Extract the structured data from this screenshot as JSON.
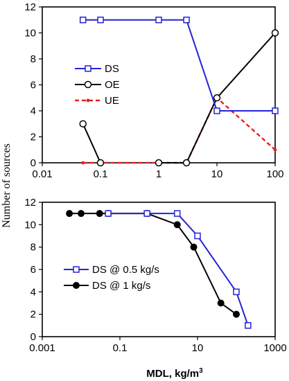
{
  "ylabel": "Number of sources",
  "chart_data": [
    {
      "type": "line",
      "xscale": "log",
      "xlim": [
        0.01,
        100
      ],
      "ylim": [
        0,
        12
      ],
      "xticks": [
        "0.01",
        "0.1",
        "1",
        "10",
        "100"
      ],
      "yticks": [
        "0",
        "2",
        "4",
        "6",
        "8",
        "10",
        "12"
      ],
      "legend_position": "left",
      "series": [
        {
          "name": "DS",
          "color": "#2323d6",
          "marker": "open-square",
          "style": "solid",
          "points": [
            [
              0.05,
              11
            ],
            [
              0.1,
              11
            ],
            [
              1,
              11
            ],
            [
              3,
              11
            ],
            [
              10,
              4
            ],
            [
              100,
              4
            ]
          ]
        },
        {
          "name": "OE",
          "color": "#000000",
          "marker": "open-circle",
          "style": "solid",
          "segments": [
            [
              [
                0.05,
                3
              ],
              [
                0.1,
                0
              ]
            ],
            [
              [
                1,
                0
              ],
              [
                3,
                0
              ],
              [
                10,
                5
              ],
              [
                100,
                10
              ]
            ]
          ],
          "points": [
            [
              0.05,
              3
            ],
            [
              0.1,
              0
            ],
            [
              1,
              0
            ],
            [
              3,
              0
            ],
            [
              10,
              5
            ],
            [
              100,
              10
            ]
          ]
        },
        {
          "name": "UE",
          "color": "#e8201e",
          "marker": "small-dot",
          "style": "dashed",
          "points": [
            [
              0.05,
              0
            ],
            [
              0.1,
              0
            ],
            [
              1,
              0
            ],
            [
              3,
              0
            ],
            [
              10,
              5
            ],
            [
              100,
              1
            ]
          ]
        }
      ]
    },
    {
      "type": "line",
      "xscale": "log",
      "xlim": [
        0.001,
        1000
      ],
      "ylim": [
        0,
        12
      ],
      "xticks": [
        "0.001",
        "0.1",
        "10",
        "1000"
      ],
      "yticks": [
        "0",
        "2",
        "4",
        "6",
        "8",
        "10",
        "12"
      ],
      "xlabel_main": "MDL, kg/m",
      "xlabel_sup": "3",
      "legend_position": "left",
      "series": [
        {
          "name": "DS @ 0.5 kg/s",
          "color": "#2323d6",
          "marker": "open-square",
          "style": "solid",
          "points": [
            [
              0.05,
              11
            ],
            [
              0.5,
              11
            ],
            [
              3,
              11
            ],
            [
              10,
              9
            ],
            [
              100,
              4
            ],
            [
              200,
              1
            ]
          ]
        },
        {
          "name": "DS @ 1 kg/s",
          "color": "#000000",
          "marker": "filled-circle",
          "style": "solid",
          "points": [
            [
              0.005,
              11
            ],
            [
              0.01,
              11
            ],
            [
              0.03,
              11
            ],
            [
              0.05,
              11
            ],
            [
              0.5,
              11
            ],
            [
              3,
              10
            ],
            [
              8,
              8
            ],
            [
              40,
              3
            ],
            [
              100,
              2
            ]
          ]
        }
      ]
    }
  ]
}
